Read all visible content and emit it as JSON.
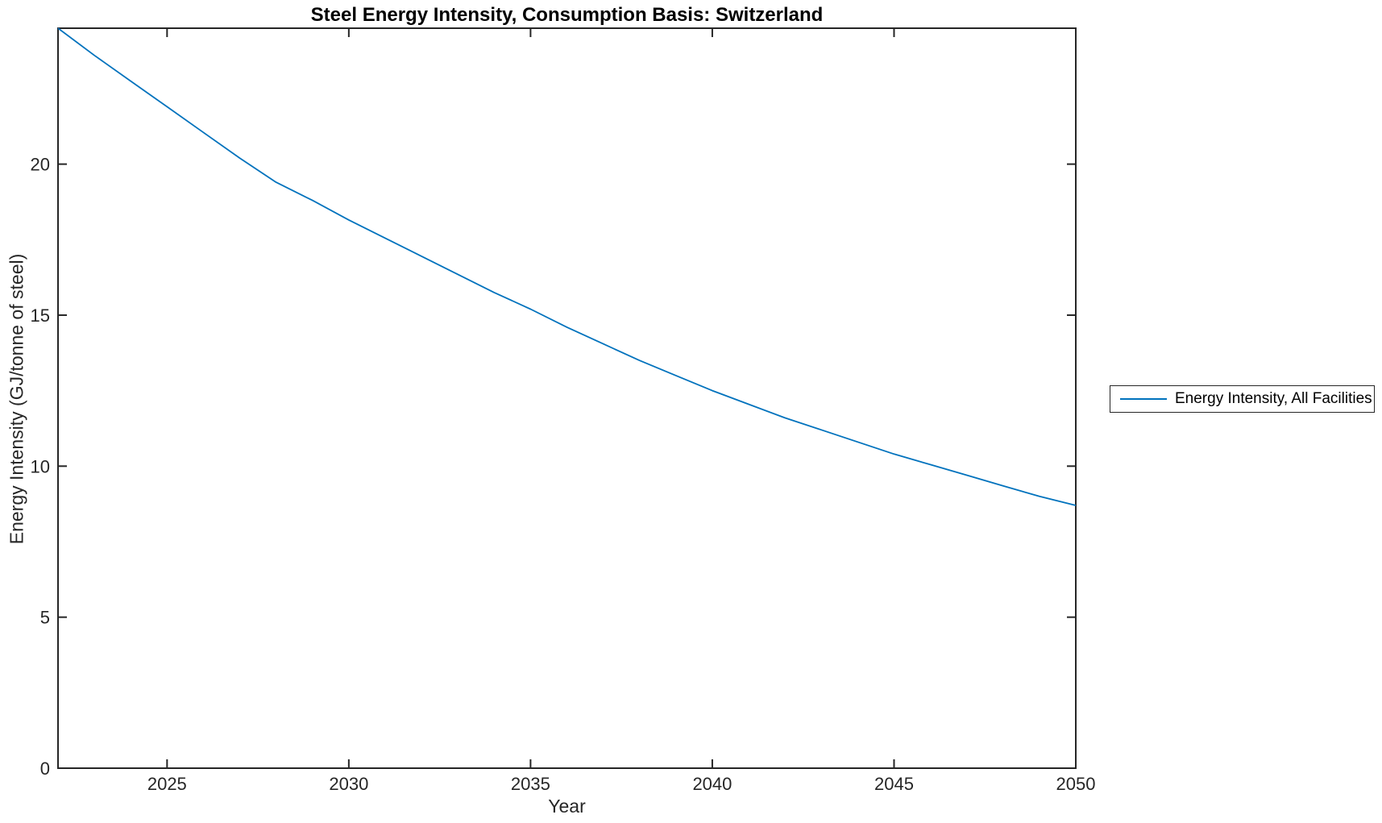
{
  "chart_data": {
    "type": "line",
    "title": "Steel Energy Intensity, Consumption Basis: Switzerland",
    "xlabel": "Year",
    "ylabel": "Energy Intensity (GJ/tonne of steel)",
    "grid": false,
    "box": true,
    "tick_direction": "in",
    "legend_position": "right-outside",
    "xlim": [
      2022,
      2050
    ],
    "ylim": [
      0,
      24.5
    ],
    "xticks": [
      2025,
      2030,
      2035,
      2040,
      2045,
      2050
    ],
    "yticks": [
      0,
      5,
      10,
      15,
      20
    ],
    "axis_color": "#262626",
    "tick_label_color": "#262626",
    "series": [
      {
        "name": "Energy Intensity, All Facilities",
        "color": "#0072BD",
        "x": [
          2022,
          2023,
          2024,
          2025,
          2026,
          2027,
          2028,
          2029,
          2030,
          2031,
          2032,
          2033,
          2034,
          2035,
          2036,
          2037,
          2038,
          2039,
          2040,
          2041,
          2042,
          2043,
          2044,
          2045,
          2046,
          2047,
          2048,
          2049,
          2050
        ],
        "y": [
          24.5,
          23.6,
          22.75,
          21.9,
          21.05,
          20.2,
          19.4,
          18.8,
          18.15,
          17.55,
          16.95,
          16.35,
          15.75,
          15.2,
          14.6,
          14.05,
          13.5,
          13.0,
          12.5,
          12.05,
          11.6,
          11.2,
          10.8,
          10.4,
          10.05,
          9.7,
          9.35,
          9.0,
          8.7
        ]
      }
    ]
  }
}
